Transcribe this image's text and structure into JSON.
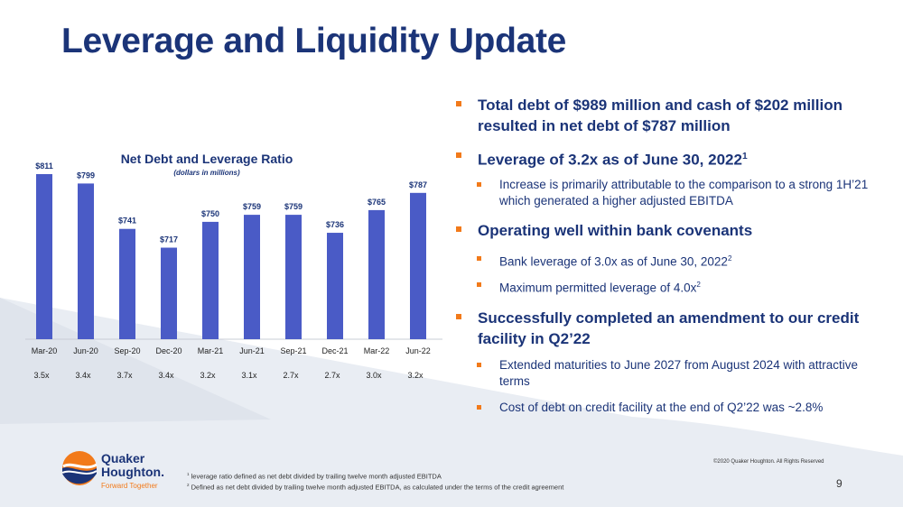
{
  "title": "Leverage and Liquidity Update",
  "bullets": [
    {
      "level": 1,
      "text": "Total debt of $989 million and cash of $202 million resulted in net debt of $787 million"
    },
    {
      "level": 1,
      "text": "Leverage of 3.2x as of June 30, 2022",
      "sup": "1"
    },
    {
      "level": 2,
      "text": "Increase is primarily attributable to the comparison to a strong 1H’21 which generated a higher adjusted EBITDA"
    },
    {
      "level": 1,
      "text": "Operating well within bank covenants"
    },
    {
      "level": 2,
      "text": "Bank leverage of 3.0x as of June 30, 2022",
      "sup": "2"
    },
    {
      "level": 2,
      "text": "Maximum permitted leverage of 4.0x",
      "sup": "2"
    },
    {
      "level": 1,
      "text": "Successfully completed an amendment to our credit facility in Q2’22"
    },
    {
      "level": 2,
      "text": "Extended maturities to June 2027 from August 2024 with attractive terms"
    },
    {
      "level": 2,
      "text": "Cost of debt on credit facility at the end of Q2’22 was ~2.8%"
    }
  ],
  "footnotes": {
    "f1_sup": "1",
    "f1": "leverage ratio defined as net debt divided by trailing twelve month adjusted EBITDA",
    "f2_sup": "2",
    "f2": "Defined as net debt divided by trailing twelve month adjusted EBITDA, as calculated under the terms of the credit agreement"
  },
  "copyright": "©2020 Quaker Houghton. All Rights Reserved",
  "page_number": "9",
  "logo": {
    "line1": "Quaker",
    "line2": "Houghton.",
    "tagline": "Forward Together"
  },
  "colors": {
    "bar": "#4a5bc6",
    "navy": "#1b3478",
    "orange": "#f27a1a"
  },
  "chart_data": {
    "type": "bar",
    "title": "Net Debt and Leverage Ratio",
    "subtitle": "(dollars in millions)",
    "categories": [
      "Mar-20",
      "Jun-20",
      "Sep-20",
      "Dec-20",
      "Mar-21",
      "Jun-21",
      "Sep-21",
      "Dec-21",
      "Mar-22",
      "Jun-22"
    ],
    "values": [
      811,
      799,
      741,
      717,
      750,
      759,
      759,
      736,
      765,
      787
    ],
    "value_labels": [
      "$811",
      "$799",
      "$741",
      "$717",
      "$750",
      "$759",
      "$759",
      "$736",
      "$765",
      "$787"
    ],
    "leverage_ratios": [
      "3.5x",
      "3.4x",
      "3.7x",
      "3.4x",
      "3.2x",
      "3.1x",
      "2.7x",
      "2.7x",
      "3.0x",
      "3.2x"
    ],
    "ylim": [
      600,
      820
    ],
    "grid": false
  }
}
